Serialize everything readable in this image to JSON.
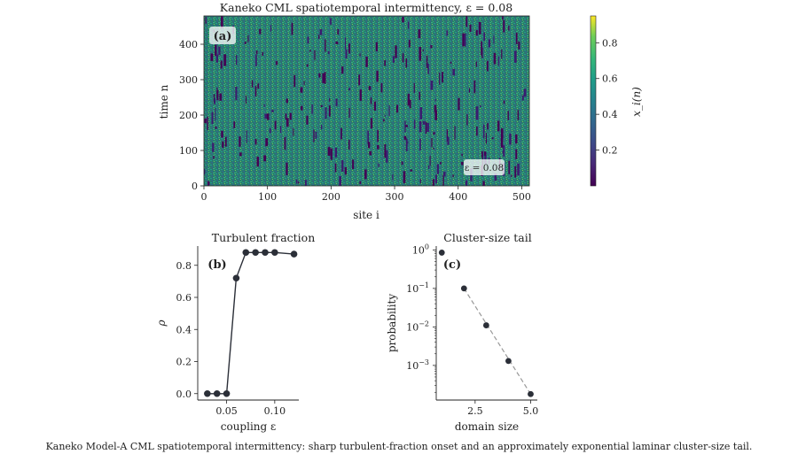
{
  "caption": "Kaneko Model-A CML spatiotemporal intermittency: sharp turbulent-fraction onset and an approximately exponential laminar cluster-size tail.",
  "chart_data": [
    {
      "type": "heatmap",
      "panel_label": "(a)",
      "title": "Kaneko CML spatiotemporal intermittency, ε = 0.08",
      "xlabel": "site i",
      "ylabel": "time n",
      "xlim": [
        0,
        512
      ],
      "ylim": [
        0,
        480
      ],
      "xticks": [
        0,
        100,
        200,
        300,
        400,
        500
      ],
      "yticks": [
        0,
        100,
        200,
        300,
        400
      ],
      "annotation": "ε = 0.08",
      "colormap": "viridis",
      "colorbar": {
        "label": "x_i(n)",
        "ticks": [
          0.2,
          0.4,
          0.6,
          0.8
        ],
        "range": [
          0.0,
          0.95
        ]
      }
    },
    {
      "type": "line",
      "panel_label": "(b)",
      "title": "Turbulent fraction",
      "xlabel": "coupling ε",
      "ylabel": "ρ",
      "x": [
        0.03,
        0.04,
        0.05,
        0.06,
        0.07,
        0.08,
        0.09,
        0.1,
        0.12
      ],
      "y": [
        0.0,
        0.0,
        0.0,
        0.72,
        0.88,
        0.88,
        0.88,
        0.88,
        0.87
      ],
      "xlim": [
        0.02,
        0.125
      ],
      "ylim": [
        -0.04,
        0.92
      ],
      "xticks": [
        "0.05",
        "0.10"
      ],
      "yticks": [
        "0.0",
        "0.2",
        "0.4",
        "0.6",
        "0.8"
      ],
      "color": "#2b2f38"
    },
    {
      "type": "scatter",
      "panel_label": "(c)",
      "title": "Cluster-size tail",
      "xlabel": "domain size",
      "ylabel": "probability",
      "x": [
        1,
        2,
        3,
        4,
        5
      ],
      "y": [
        0.85,
        0.1,
        0.011,
        0.0013,
        0.00018
      ],
      "fit": {
        "x": [
          2,
          5
        ],
        "y": [
          0.1,
          0.00018
        ],
        "style": "dashed",
        "color": "#999999"
      },
      "xlim": [
        0.75,
        5.3
      ],
      "ylim_log10": [
        -3.9,
        0.1
      ],
      "yscale": "log",
      "xticks": [
        "2.5",
        "5.0"
      ],
      "yticks": [
        "10^0",
        "10^-1",
        "10^-2",
        "10^-3"
      ],
      "color": "#2b2f38"
    }
  ]
}
